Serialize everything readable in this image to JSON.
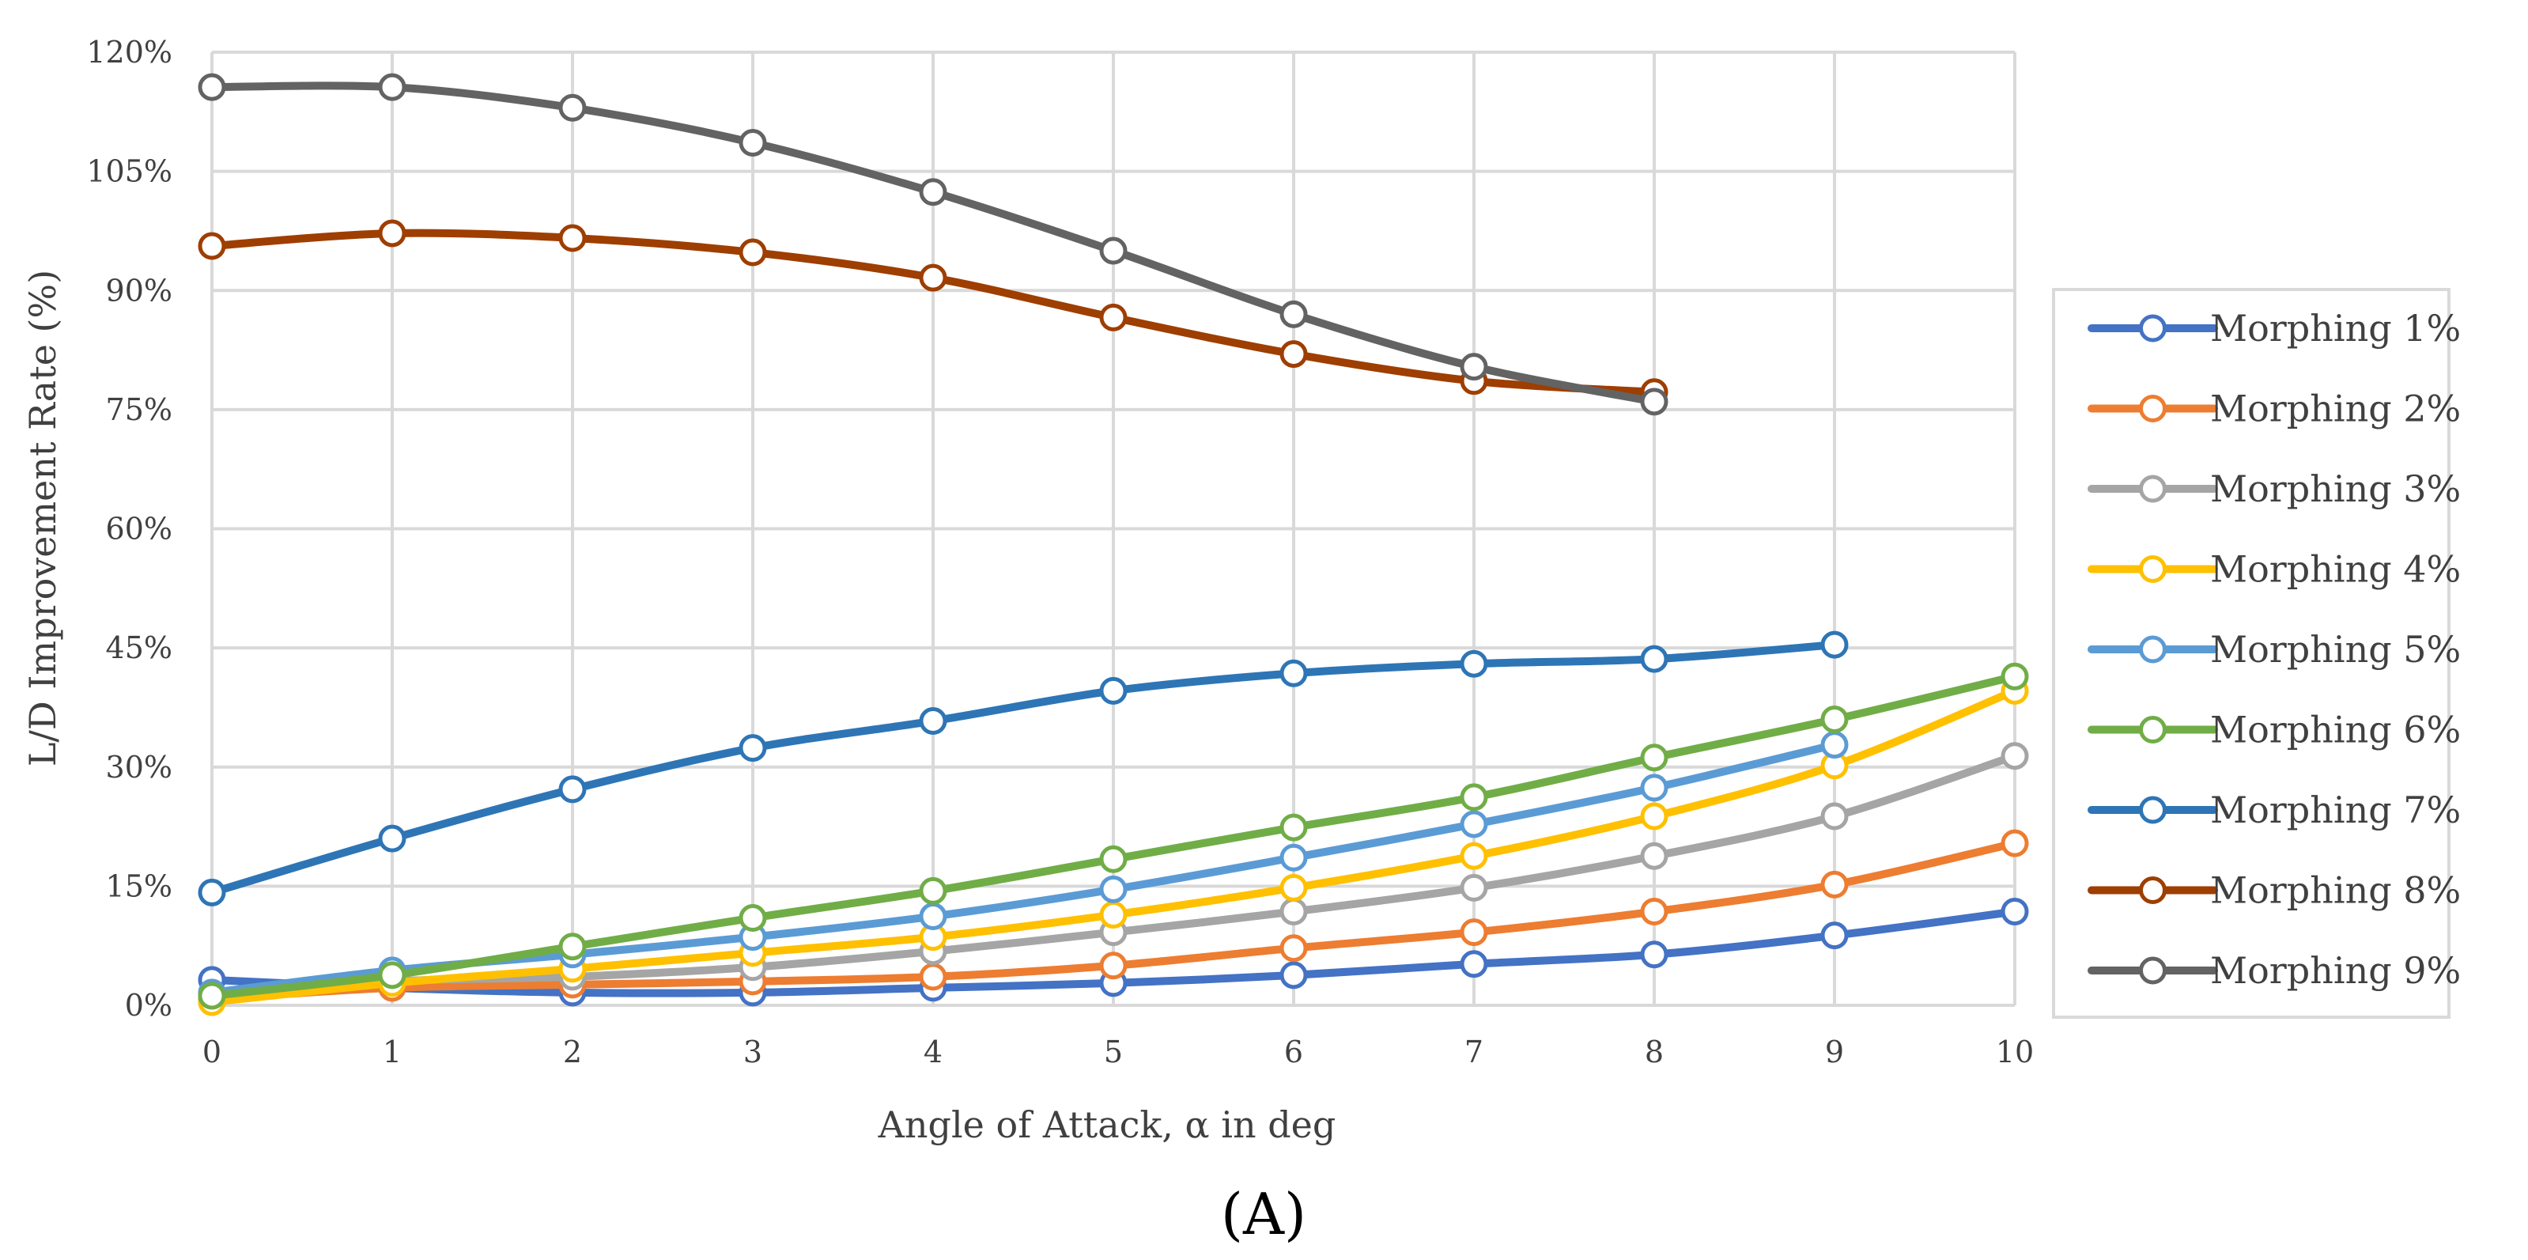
{
  "chart_data": {
    "type": "line",
    "title": "",
    "panel_label": "(A)",
    "xlabel": "Angle of Attack, α in deg",
    "ylabel": "L/D Improvement Rate (%)",
    "xlim": [
      0,
      10
    ],
    "ylim": [
      0,
      120
    ],
    "x_ticks": [
      "0",
      "1",
      "2",
      "3",
      "4",
      "5",
      "6",
      "7",
      "8",
      "9",
      "10"
    ],
    "y_ticks": [
      "0%",
      "15%",
      "30%",
      "45%",
      "60%",
      "75%",
      "90%",
      "105%",
      "120%"
    ],
    "grid": true,
    "legend_position": "right",
    "series": [
      {
        "name": "Morphing 1%",
        "color": "#4472C4",
        "x": [
          0,
          1,
          2,
          3,
          4,
          5,
          6,
          7,
          8,
          9,
          10
        ],
        "values": [
          3.2,
          2.2,
          1.6,
          1.6,
          2.2,
          2.8,
          3.8,
          5.2,
          6.4,
          8.8,
          11.8
        ]
      },
      {
        "name": "Morphing 2%",
        "color": "#ED7D31",
        "x": [
          0,
          1,
          2,
          3,
          4,
          5,
          6,
          7,
          8,
          9,
          10
        ],
        "values": [
          0.8,
          2.2,
          2.6,
          3.0,
          3.6,
          5.0,
          7.2,
          9.2,
          11.8,
          15.2,
          20.4
        ]
      },
      {
        "name": "Morphing 3%",
        "color": "#A5A5A5",
        "x": [
          0,
          1,
          2,
          3,
          4,
          5,
          6,
          7,
          8,
          9,
          10
        ],
        "values": [
          1.0,
          3.0,
          3.6,
          4.8,
          6.8,
          9.2,
          11.8,
          14.8,
          18.8,
          23.8,
          31.4
        ]
      },
      {
        "name": "Morphing 4%",
        "color": "#FFC000",
        "x": [
          0,
          1,
          2,
          3,
          4,
          5,
          6,
          7,
          8,
          9,
          10
        ],
        "values": [
          0.4,
          2.8,
          4.6,
          6.6,
          8.6,
          11.4,
          14.8,
          18.8,
          23.8,
          30.2,
          39.6
        ]
      },
      {
        "name": "Morphing 5%",
        "color": "#5B9BD5",
        "x": [
          0,
          1,
          2,
          3,
          4,
          5,
          6,
          7,
          8,
          9
        ],
        "values": [
          1.6,
          4.4,
          6.4,
          8.6,
          11.2,
          14.6,
          18.6,
          22.8,
          27.4,
          32.8
        ]
      },
      {
        "name": "Morphing 6%",
        "color": "#70AD47",
        "x": [
          0,
          1,
          2,
          3,
          4,
          5,
          6,
          7,
          8,
          9,
          10
        ],
        "values": [
          1.2,
          3.8,
          7.4,
          11.0,
          14.4,
          18.4,
          22.4,
          26.2,
          31.2,
          36.0,
          41.4
        ]
      },
      {
        "name": "Morphing 7%",
        "color": "#2E75B6",
        "x": [
          0,
          1,
          2,
          3,
          4,
          5,
          6,
          7,
          8,
          9
        ],
        "values": [
          14.2,
          21.0,
          27.2,
          32.4,
          35.8,
          39.6,
          41.8,
          43.0,
          43.6,
          45.4
        ]
      },
      {
        "name": "Morphing 8%",
        "color": "#9E3E00",
        "x": [
          0,
          1,
          2,
          3,
          4,
          5,
          6,
          7,
          8
        ],
        "values": [
          95.6,
          97.2,
          96.6,
          94.8,
          91.6,
          86.6,
          82.0,
          78.6,
          77.2
        ]
      },
      {
        "name": "Morphing 9%",
        "color": "#636363",
        "x": [
          0,
          1,
          2,
          3,
          4,
          5,
          6,
          7,
          8
        ],
        "values": [
          115.6,
          115.6,
          113.0,
          108.6,
          102.4,
          95.0,
          87.0,
          80.4,
          76.0
        ]
      }
    ]
  }
}
